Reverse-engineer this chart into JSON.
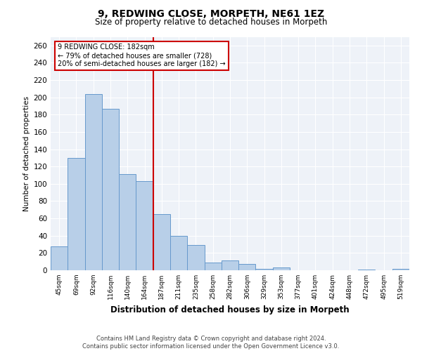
{
  "title_line1": "9, REDWING CLOSE, MORPETH, NE61 1EZ",
  "title_line2": "Size of property relative to detached houses in Morpeth",
  "xlabel": "Distribution of detached houses by size in Morpeth",
  "ylabel": "Number of detached properties",
  "categories": [
    "45sqm",
    "69sqm",
    "92sqm",
    "116sqm",
    "140sqm",
    "164sqm",
    "187sqm",
    "211sqm",
    "235sqm",
    "258sqm",
    "282sqm",
    "306sqm",
    "329sqm",
    "353sqm",
    "377sqm",
    "401sqm",
    "424sqm",
    "448sqm",
    "472sqm",
    "495sqm",
    "519sqm"
  ],
  "values": [
    28,
    130,
    204,
    187,
    111,
    103,
    65,
    40,
    29,
    9,
    11,
    7,
    2,
    3,
    0,
    0,
    0,
    0,
    1,
    0,
    2
  ],
  "bar_color": "#b8cfe8",
  "bar_edge_color": "#6699cc",
  "vline_x_index": 6,
  "vline_color": "#cc0000",
  "annotation_text": "9 REDWING CLOSE: 182sqm\n← 79% of detached houses are smaller (728)\n20% of semi-detached houses are larger (182) →",
  "annotation_box_color": "#ffffff",
  "annotation_box_edge": "#cc0000",
  "ylim": [
    0,
    270
  ],
  "yticks": [
    0,
    20,
    40,
    60,
    80,
    100,
    120,
    140,
    160,
    180,
    200,
    220,
    240,
    260
  ],
  "bg_color": "#eef2f8",
  "grid_color": "#ffffff",
  "footer_line1": "Contains HM Land Registry data © Crown copyright and database right 2024.",
  "footer_line2": "Contains public sector information licensed under the Open Government Licence v3.0."
}
